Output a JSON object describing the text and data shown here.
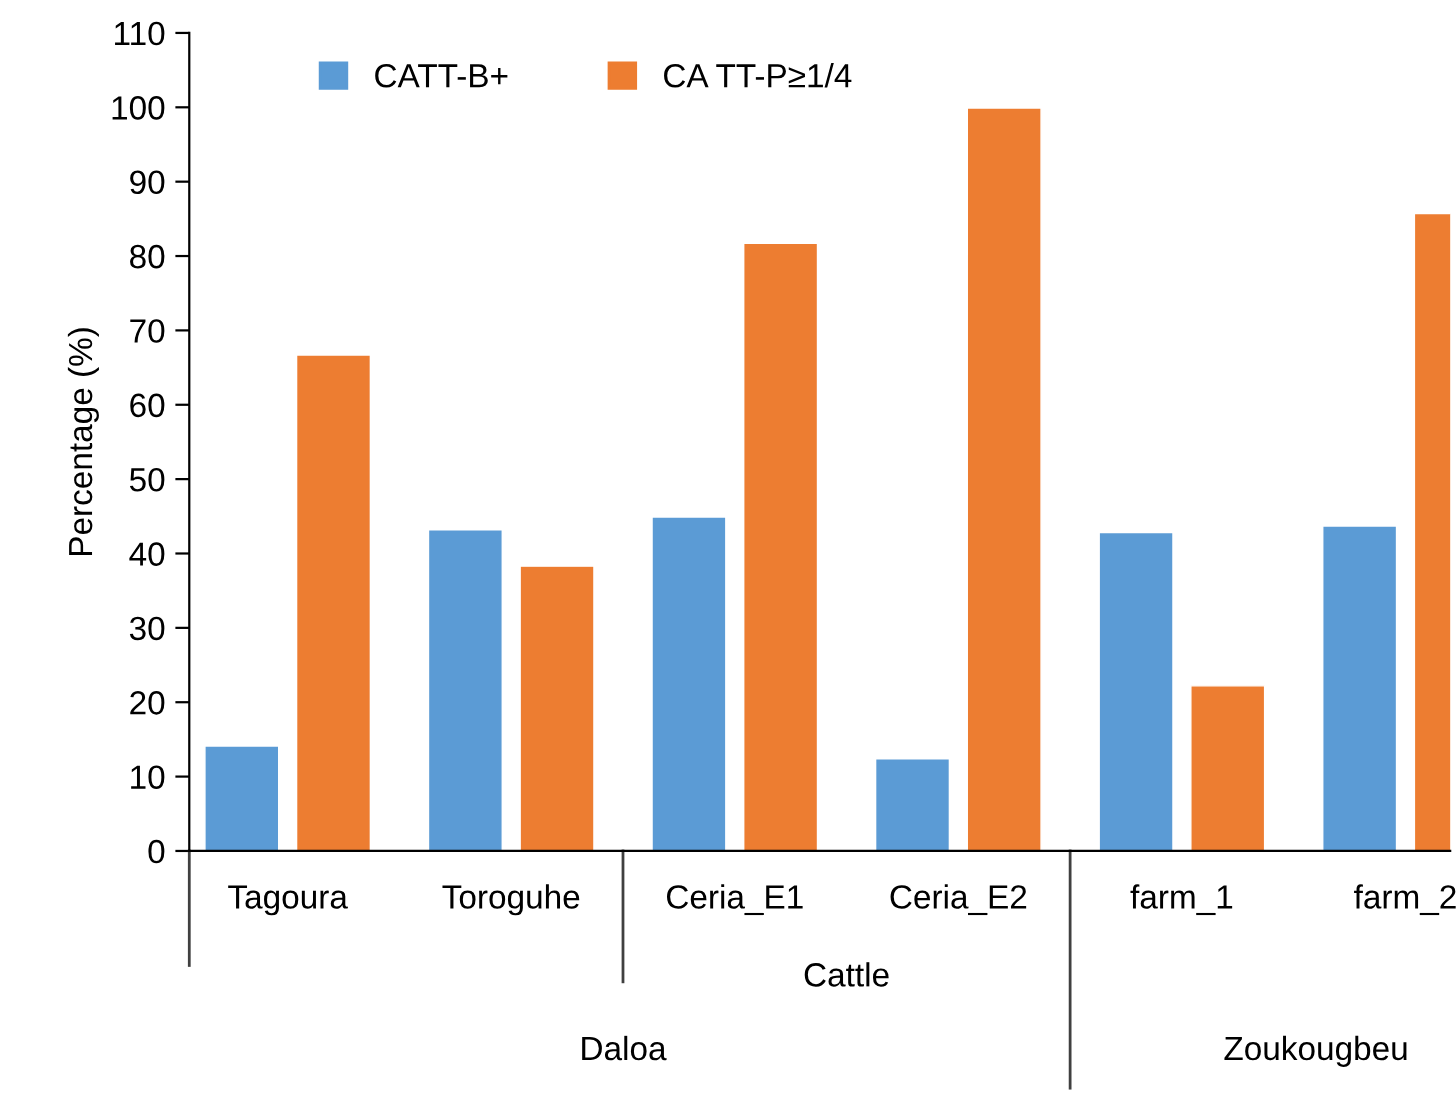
{
  "chart_data": {
    "type": "bar",
    "ylabel": "Percentage (%)",
    "categories": [
      "Tagoura",
      "Toroguhe",
      "Ceria_E1",
      "Ceria_E2",
      "farm_1",
      "farm_2"
    ],
    "series": [
      {
        "name": "CATT-B+",
        "color": "#5b9bd5",
        "values": [
          14.1,
          43.2,
          44.9,
          12.4,
          42.8,
          43.7
        ]
      },
      {
        "name": "CA TT-P≥1/4",
        "color": "#ed7d31",
        "values": [
          66.7,
          38.3,
          81.7,
          99.9,
          22.2,
          85.7
        ]
      }
    ],
    "ylim": [
      0,
      110
    ],
    "yticks": [
      0,
      10,
      20,
      30,
      40,
      50,
      60,
      70,
      80,
      90,
      100,
      110
    ],
    "grid": false,
    "legend": "top left",
    "annotations": [
      "Cattle",
      "Daloa",
      "Zoukougbeu"
    ]
  }
}
